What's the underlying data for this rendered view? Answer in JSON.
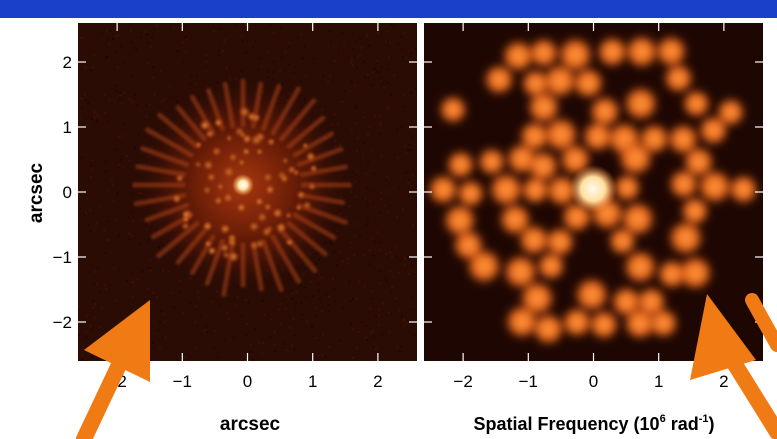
{
  "figure": {
    "left_panel": {
      "y_axis_label": "arcsec",
      "x_axis_label": "arcsec",
      "x_ticks": [
        "−2",
        "−1",
        "0",
        "1",
        "2"
      ],
      "y_ticks": [
        "2",
        "1",
        "0",
        "−1",
        "−2"
      ],
      "x_tick_values": [
        -2,
        -1,
        0,
        1,
        2
      ],
      "y_tick_values": [
        2,
        1,
        0,
        -1,
        -2
      ],
      "extent": [
        -2.6,
        2.6
      ]
    },
    "right_panel": {
      "x_axis_label_main": "Spatial Frequency (10",
      "x_axis_label_exp1": "6",
      "x_axis_label_mid": " rad",
      "x_axis_label_exp2": "-1",
      "x_axis_label_end": ")",
      "x_ticks": [
        "−2",
        "−1",
        "0",
        "1",
        "2"
      ],
      "x_tick_values": [
        -2,
        -1,
        0,
        1,
        2
      ],
      "extent": [
        -2.6,
        2.6
      ]
    }
  },
  "colors": {
    "slide_background": "#1a3fc8",
    "panel_frame": "#ffffff",
    "arrow": "#f07a14",
    "dark_red": "#2a0c05",
    "hot_orange": "#e8620e",
    "hot_white": "#fff6e0"
  }
}
